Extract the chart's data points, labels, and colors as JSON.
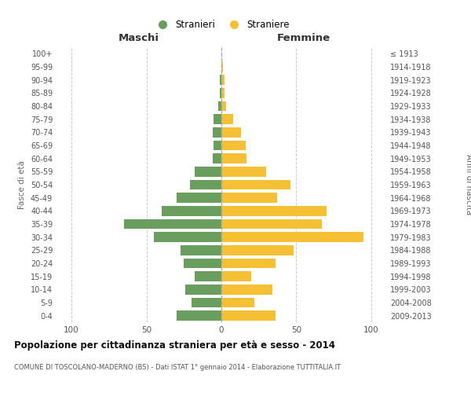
{
  "age_groups": [
    "0-4",
    "5-9",
    "10-14",
    "15-19",
    "20-24",
    "25-29",
    "30-34",
    "35-39",
    "40-44",
    "45-49",
    "50-54",
    "55-59",
    "60-64",
    "65-69",
    "70-74",
    "75-79",
    "80-84",
    "85-89",
    "90-94",
    "95-99",
    "100+"
  ],
  "birth_years": [
    "2009-2013",
    "2004-2008",
    "1999-2003",
    "1994-1998",
    "1989-1993",
    "1984-1988",
    "1979-1983",
    "1974-1978",
    "1969-1973",
    "1964-1968",
    "1959-1963",
    "1954-1958",
    "1949-1953",
    "1944-1948",
    "1939-1943",
    "1934-1938",
    "1929-1933",
    "1924-1928",
    "1919-1923",
    "1914-1918",
    "≤ 1913"
  ],
  "males": [
    30,
    20,
    24,
    18,
    25,
    27,
    45,
    65,
    40,
    30,
    21,
    18,
    6,
    5,
    6,
    5,
    2,
    1,
    1,
    0,
    0
  ],
  "females": [
    36,
    22,
    34,
    20,
    36,
    48,
    95,
    67,
    70,
    37,
    46,
    30,
    17,
    16,
    13,
    8,
    3,
    2,
    2,
    1,
    0
  ],
  "male_color": "#6a9e5e",
  "female_color": "#f5c033",
  "center_line_color": "#999999",
  "grid_color": "#cccccc",
  "background_color": "#ffffff",
  "title": "Popolazione per cittadinanza straniera per età e sesso - 2014",
  "subtitle": "COMUNE DI TOSCOLANO-MADERNO (BS) - Dati ISTAT 1° gennaio 2014 - Elaborazione TUTTITALIA.IT",
  "xlabel_maschi": "Maschi",
  "xlabel_femmine": "Femmine",
  "ylabel_left": "Fasce di età",
  "ylabel_right": "Anni di nascita",
  "legend_maschi": "Stranieri",
  "legend_femmine": "Straniere",
  "xlim": 110
}
